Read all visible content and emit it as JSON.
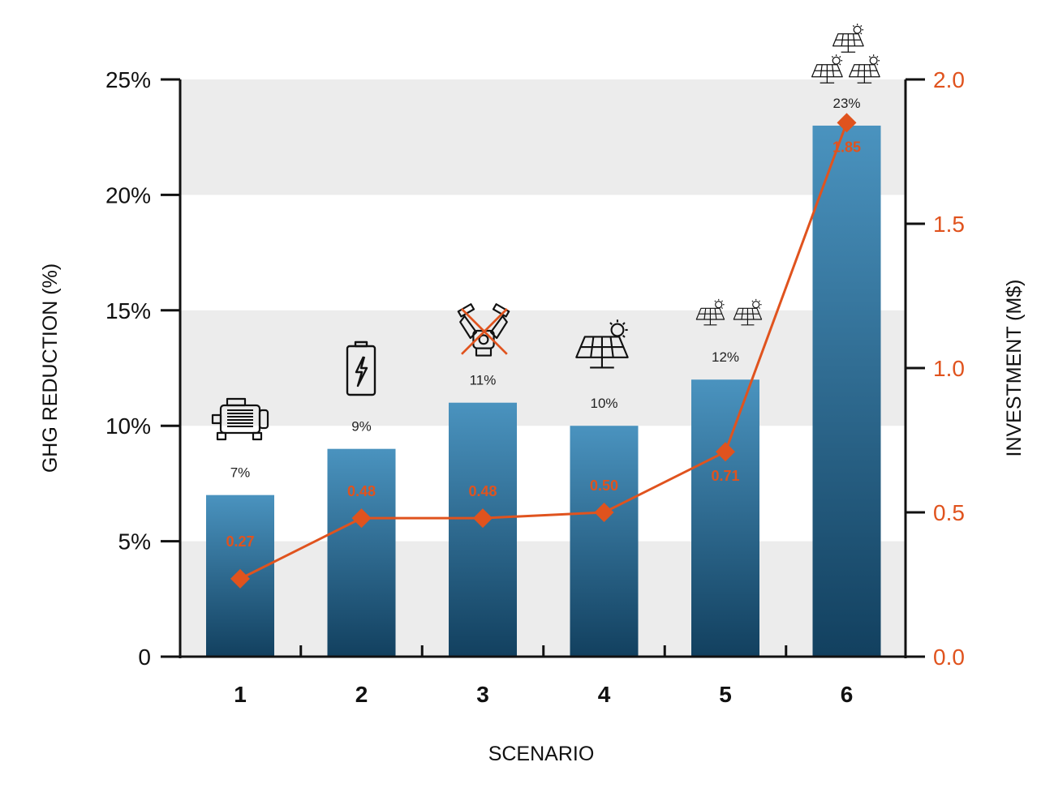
{
  "chart_data": {
    "type": "bar",
    "xlabel": "SCENARIO",
    "ylabel": "GHG REDUCTION (%)",
    "y2label": "INVESTMENT (M$)",
    "categories": [
      "1",
      "2",
      "3",
      "4",
      "5",
      "6"
    ],
    "series": [
      {
        "type": "bar",
        "axis": "left",
        "values": [
          7,
          9,
          11,
          10,
          12,
          23
        ],
        "labels": [
          "7%",
          "9%",
          "11%",
          "10%",
          "12%",
          "23%"
        ],
        "color": "#2f6f96"
      },
      {
        "type": "line",
        "axis": "right",
        "values": [
          0.27,
          0.48,
          0.48,
          0.5,
          0.71,
          1.85
        ],
        "labels": [
          "0.27",
          "0.48",
          "0.48",
          "0.50",
          "0.71",
          "1.85"
        ],
        "color": "#e0531e"
      }
    ],
    "ylim": [
      0,
      25
    ],
    "y2lim": [
      0,
      2.0
    ],
    "yticks": [
      0,
      5,
      10,
      15,
      20,
      25
    ],
    "ytick_labels": [
      "0",
      "5%",
      "10%",
      "15%",
      "20%",
      "25%"
    ],
    "y2ticks": [
      0,
      0.5,
      1.0,
      1.5,
      2.0
    ],
    "y2tick_labels": [
      "0.0",
      "0.5",
      "1.0",
      "1.5",
      "2.0"
    ],
    "grid": "alternating horizontal bands",
    "band_color": "#ececec",
    "scenario_icons": [
      [
        "motor-icon"
      ],
      [
        "battery-icon"
      ],
      [
        "engine-removed-icon"
      ],
      [
        "solar-panel-icon"
      ],
      [
        "solar-panel-icon",
        "solar-panel-icon"
      ],
      [
        "solar-panel-icon",
        "solar-panel-icon",
        "solar-panel-icon"
      ]
    ]
  }
}
